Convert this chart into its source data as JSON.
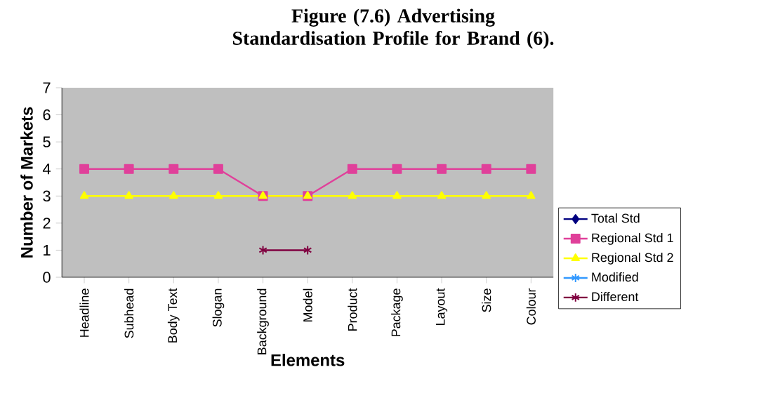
{
  "chart_data": {
    "type": "line",
    "title": "Figure (7.6) Advertising Standardisation Profile for Brand (6).",
    "xlabel": "Elements",
    "ylabel": "Number of Markets",
    "categories": [
      "Headline",
      "Subhead",
      "Body Text",
      "Slogan",
      "Background",
      "Model",
      "Product",
      "Package",
      "Layout",
      "Size",
      "Colour"
    ],
    "series": [
      {
        "name": "Total Std",
        "color": "#000080",
        "marker": "diamond",
        "values": [
          null,
          null,
          null,
          null,
          null,
          null,
          null,
          null,
          null,
          null,
          null
        ]
      },
      {
        "name": "Regional Std 1",
        "color": "#e0409a",
        "marker": "square",
        "values": [
          4,
          4,
          4,
          4,
          3,
          3,
          4,
          4,
          4,
          4,
          4
        ]
      },
      {
        "name": "Regional Std 2",
        "color": "#ffff00",
        "marker": "triangle",
        "values": [
          3,
          3,
          3,
          3,
          3,
          3,
          3,
          3,
          3,
          3,
          3
        ]
      },
      {
        "name": "Modified",
        "color": "#3399ff",
        "marker": "cross",
        "values": [
          null,
          null,
          null,
          null,
          null,
          null,
          null,
          null,
          null,
          null,
          null
        ]
      },
      {
        "name": "Different",
        "color": "#800040",
        "marker": "cross",
        "values": [
          null,
          null,
          null,
          null,
          1,
          1,
          null,
          null,
          null,
          null,
          null
        ]
      }
    ],
    "ylim": [
      0,
      7
    ],
    "yticks": [
      0,
      1,
      2,
      3,
      4,
      5,
      6,
      7
    ],
    "grid": false,
    "legend": "right"
  }
}
